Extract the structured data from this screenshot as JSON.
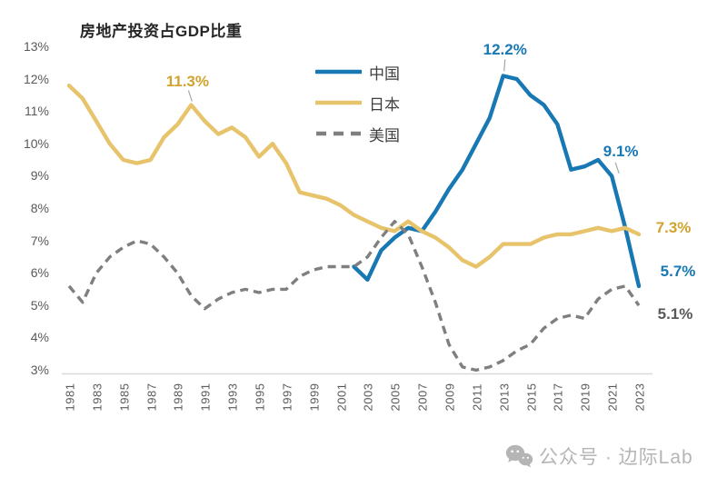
{
  "title": "房地产投资占GDP比重",
  "colors": {
    "china": "#1878b4",
    "japan": "#e7c46c",
    "us": "#7f7f7f",
    "gold_label": "#d0a32e",
    "axis_text": "#595959",
    "title_text": "#262626",
    "axis_line": "#d9d9d9",
    "pointer_line": "#a6a6a6",
    "watermark": "#b5b5b5"
  },
  "y_axis": {
    "ticks": [
      "13%",
      "12%",
      "11%",
      "10%",
      "9%",
      "8%",
      "7%",
      "6%",
      "5%",
      "4%",
      "3%"
    ],
    "values": [
      13,
      12,
      11,
      10,
      9,
      8,
      7,
      6,
      5,
      4,
      3
    ]
  },
  "x_axis": {
    "ticks": [
      "1981",
      "1983",
      "1985",
      "1987",
      "1989",
      "1991",
      "1993",
      "1995",
      "1997",
      "1999",
      "2001",
      "2003",
      "2005",
      "2007",
      "2009",
      "2011",
      "2013",
      "2015",
      "2017",
      "2019",
      "2021",
      "2023"
    ]
  },
  "chart_data": {
    "type": "line",
    "title": "房地产投资占GDP比重",
    "xlabel": "",
    "ylabel": "",
    "xlim": [
      1981,
      2023
    ],
    "ylim": [
      3,
      13
    ],
    "grid": false,
    "legend_position": "top-center-inside",
    "x": [
      1981,
      1982,
      1983,
      1984,
      1985,
      1986,
      1987,
      1988,
      1989,
      1990,
      1991,
      1992,
      1993,
      1994,
      1995,
      1996,
      1997,
      1998,
      1999,
      2000,
      2001,
      2002,
      2003,
      2004,
      2005,
      2006,
      2007,
      2008,
      2009,
      2010,
      2011,
      2012,
      2013,
      2014,
      2015,
      2016,
      2017,
      2018,
      2019,
      2020,
      2021,
      2022,
      2023
    ],
    "series": [
      {
        "name": "中国",
        "color": "#1878b4",
        "style": "solid",
        "start_year": 2002,
        "values": [
          6.3,
          5.9,
          6.8,
          7.2,
          7.5,
          7.4,
          8.0,
          8.7,
          9.3,
          10.1,
          10.9,
          12.2,
          12.1,
          11.6,
          11.3,
          10.7,
          9.3,
          9.4,
          9.6,
          9.1,
          7.5,
          5.7
        ]
      },
      {
        "name": "日本",
        "color": "#e7c46c",
        "style": "solid",
        "start_year": 1981,
        "values": [
          11.9,
          11.5,
          10.8,
          10.1,
          9.6,
          9.5,
          9.6,
          10.3,
          10.7,
          11.3,
          10.8,
          10.4,
          10.6,
          10.3,
          9.7,
          10.1,
          9.5,
          8.6,
          8.5,
          8.4,
          8.2,
          7.9,
          7.7,
          7.5,
          7.4,
          7.7,
          7.4,
          7.2,
          6.9,
          6.5,
          6.3,
          6.6,
          7.0,
          7.0,
          7.0,
          7.2,
          7.3,
          7.3,
          7.4,
          7.5,
          7.4,
          7.5,
          7.3
        ]
      },
      {
        "name": "美国",
        "color": "#7f7f7f",
        "style": "dashed",
        "start_year": 1981,
        "values": [
          5.7,
          5.2,
          6.1,
          6.6,
          6.9,
          7.1,
          7.0,
          6.6,
          6.1,
          5.4,
          5.0,
          5.3,
          5.5,
          5.6,
          5.5,
          5.6,
          5.6,
          6.0,
          6.2,
          6.3,
          6.3,
          6.3,
          6.6,
          7.2,
          7.7,
          7.3,
          6.3,
          5.2,
          3.9,
          3.2,
          3.1,
          3.2,
          3.4,
          3.7,
          3.9,
          4.4,
          4.7,
          4.8,
          4.7,
          5.3,
          5.6,
          5.7,
          5.1
        ]
      }
    ],
    "annotations": [
      {
        "text": "11.3%",
        "series": "日本",
        "year": 1990,
        "value": 11.3,
        "color": "#d0a32e",
        "pointer": true
      },
      {
        "text": "12.2%",
        "series": "中国",
        "year": 2013,
        "value": 12.2,
        "color": "#1878b4",
        "pointer": true
      },
      {
        "text": "9.1%",
        "series": "中国",
        "year": 2021,
        "value": 9.1,
        "color": "#1878b4",
        "pointer": true
      },
      {
        "text": "7.3%",
        "series": "日本",
        "year": 2023,
        "value": 7.3,
        "color": "#d0a32e",
        "pointer": false
      },
      {
        "text": "5.7%",
        "series": "中国",
        "year": 2023,
        "value": 5.7,
        "color": "#1878b4",
        "pointer": false
      },
      {
        "text": "5.1%",
        "series": "美国",
        "year": 2023,
        "value": 5.1,
        "color": "#595959",
        "pointer": false
      }
    ]
  },
  "legend": {
    "items": [
      {
        "label": "中国"
      },
      {
        "label": "日本"
      },
      {
        "label": "美国"
      }
    ]
  },
  "watermark": {
    "icon": "wechat-icon",
    "text": "公众号 · 边际Lab"
  }
}
